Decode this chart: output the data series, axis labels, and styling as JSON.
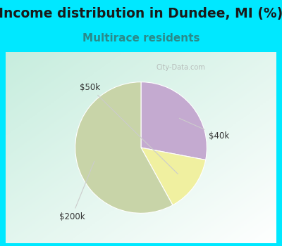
{
  "title": "Income distribution in Dundee, MI (%)",
  "subtitle": "Multirace residents",
  "title_fontsize": 13.5,
  "subtitle_fontsize": 11,
  "title_color": "#1a1a1a",
  "subtitle_color": "#2a8a8a",
  "slices": [
    {
      "label": "$40k",
      "value": 28,
      "color": "#c4aad0"
    },
    {
      "label": "$50k",
      "value": 14,
      "color": "#f0f0a0"
    },
    {
      "label": "$200k",
      "value": 58,
      "color": "#c8d4a8"
    }
  ],
  "bg_color": "#00e8ff",
  "chart_bg": "#e8f5ee",
  "start_angle": 90,
  "counterclock": false,
  "label_color": "#333333",
  "label_fontsize": 8.5,
  "line_color": "#cccccc"
}
